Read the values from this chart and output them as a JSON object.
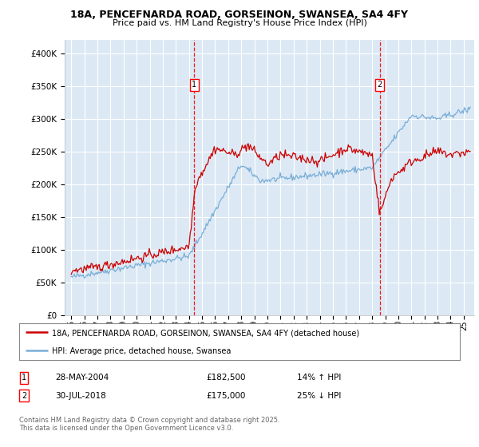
{
  "title1": "18A, PENCEFNARDA ROAD, GORSEINON, SWANSEA, SA4 4FY",
  "title2": "Price paid vs. HM Land Registry's House Price Index (HPI)",
  "background_color": "#ffffff",
  "plot_bg_color": "#dce9f5",
  "grid_color": "#ffffff",
  "line1_color": "#cc0000",
  "line2_color": "#7aaed6",
  "marker1_date_x": 2004.41,
  "marker2_date_x": 2018.58,
  "legend1": "18A, PENCEFNARDA ROAD, GORSEINON, SWANSEA, SA4 4FY (detached house)",
  "legend2": "HPI: Average price, detached house, Swansea",
  "footer": "Contains HM Land Registry data © Crown copyright and database right 2025.\nThis data is licensed under the Open Government Licence v3.0.",
  "ylim_min": 0,
  "ylim_max": 420000,
  "yticks": [
    0,
    50000,
    100000,
    150000,
    200000,
    250000,
    300000,
    350000,
    400000
  ],
  "xlim_min": 1994.5,
  "xlim_max": 2025.8
}
